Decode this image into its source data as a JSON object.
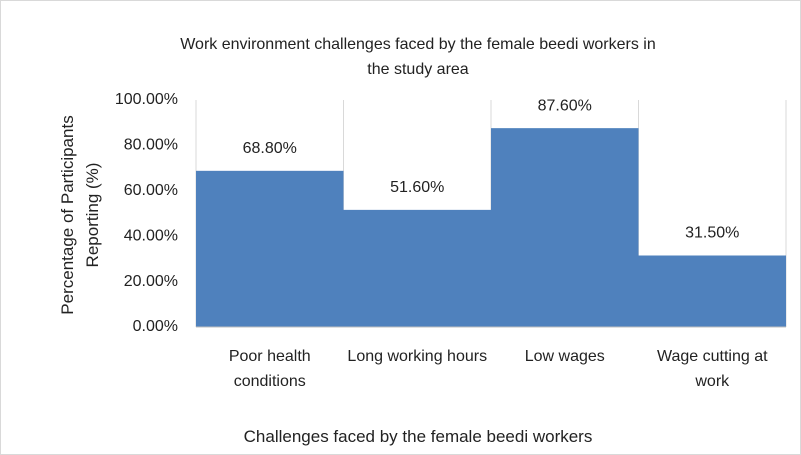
{
  "chart_data": {
    "type": "bar",
    "title": "Work environment challenges faced by the female beedi workers in the study area",
    "x_label": "Challenges faced by the female beedi workers",
    "y_label": "Percentage of Participants Reporting (%)",
    "categories": [
      "Poor health conditions",
      "Long working hours",
      "Low wages",
      "Wage cutting at work"
    ],
    "values": [
      68.8,
      51.6,
      87.6,
      31.5
    ],
    "value_labels": [
      "68.80%",
      "51.60%",
      "87.60%",
      "31.50%"
    ],
    "color": "#4f81bd",
    "ylim": [
      0,
      100
    ],
    "yticks": [
      {
        "value": 0,
        "label": "0.00%"
      },
      {
        "value": 20,
        "label": "20.00%"
      },
      {
        "value": 40,
        "label": "40.00%"
      },
      {
        "value": 60,
        "label": "60.00%"
      },
      {
        "value": 80,
        "label": "80.00%"
      },
      {
        "value": 100,
        "label": "100.00%"
      }
    ],
    "grid": false
  }
}
